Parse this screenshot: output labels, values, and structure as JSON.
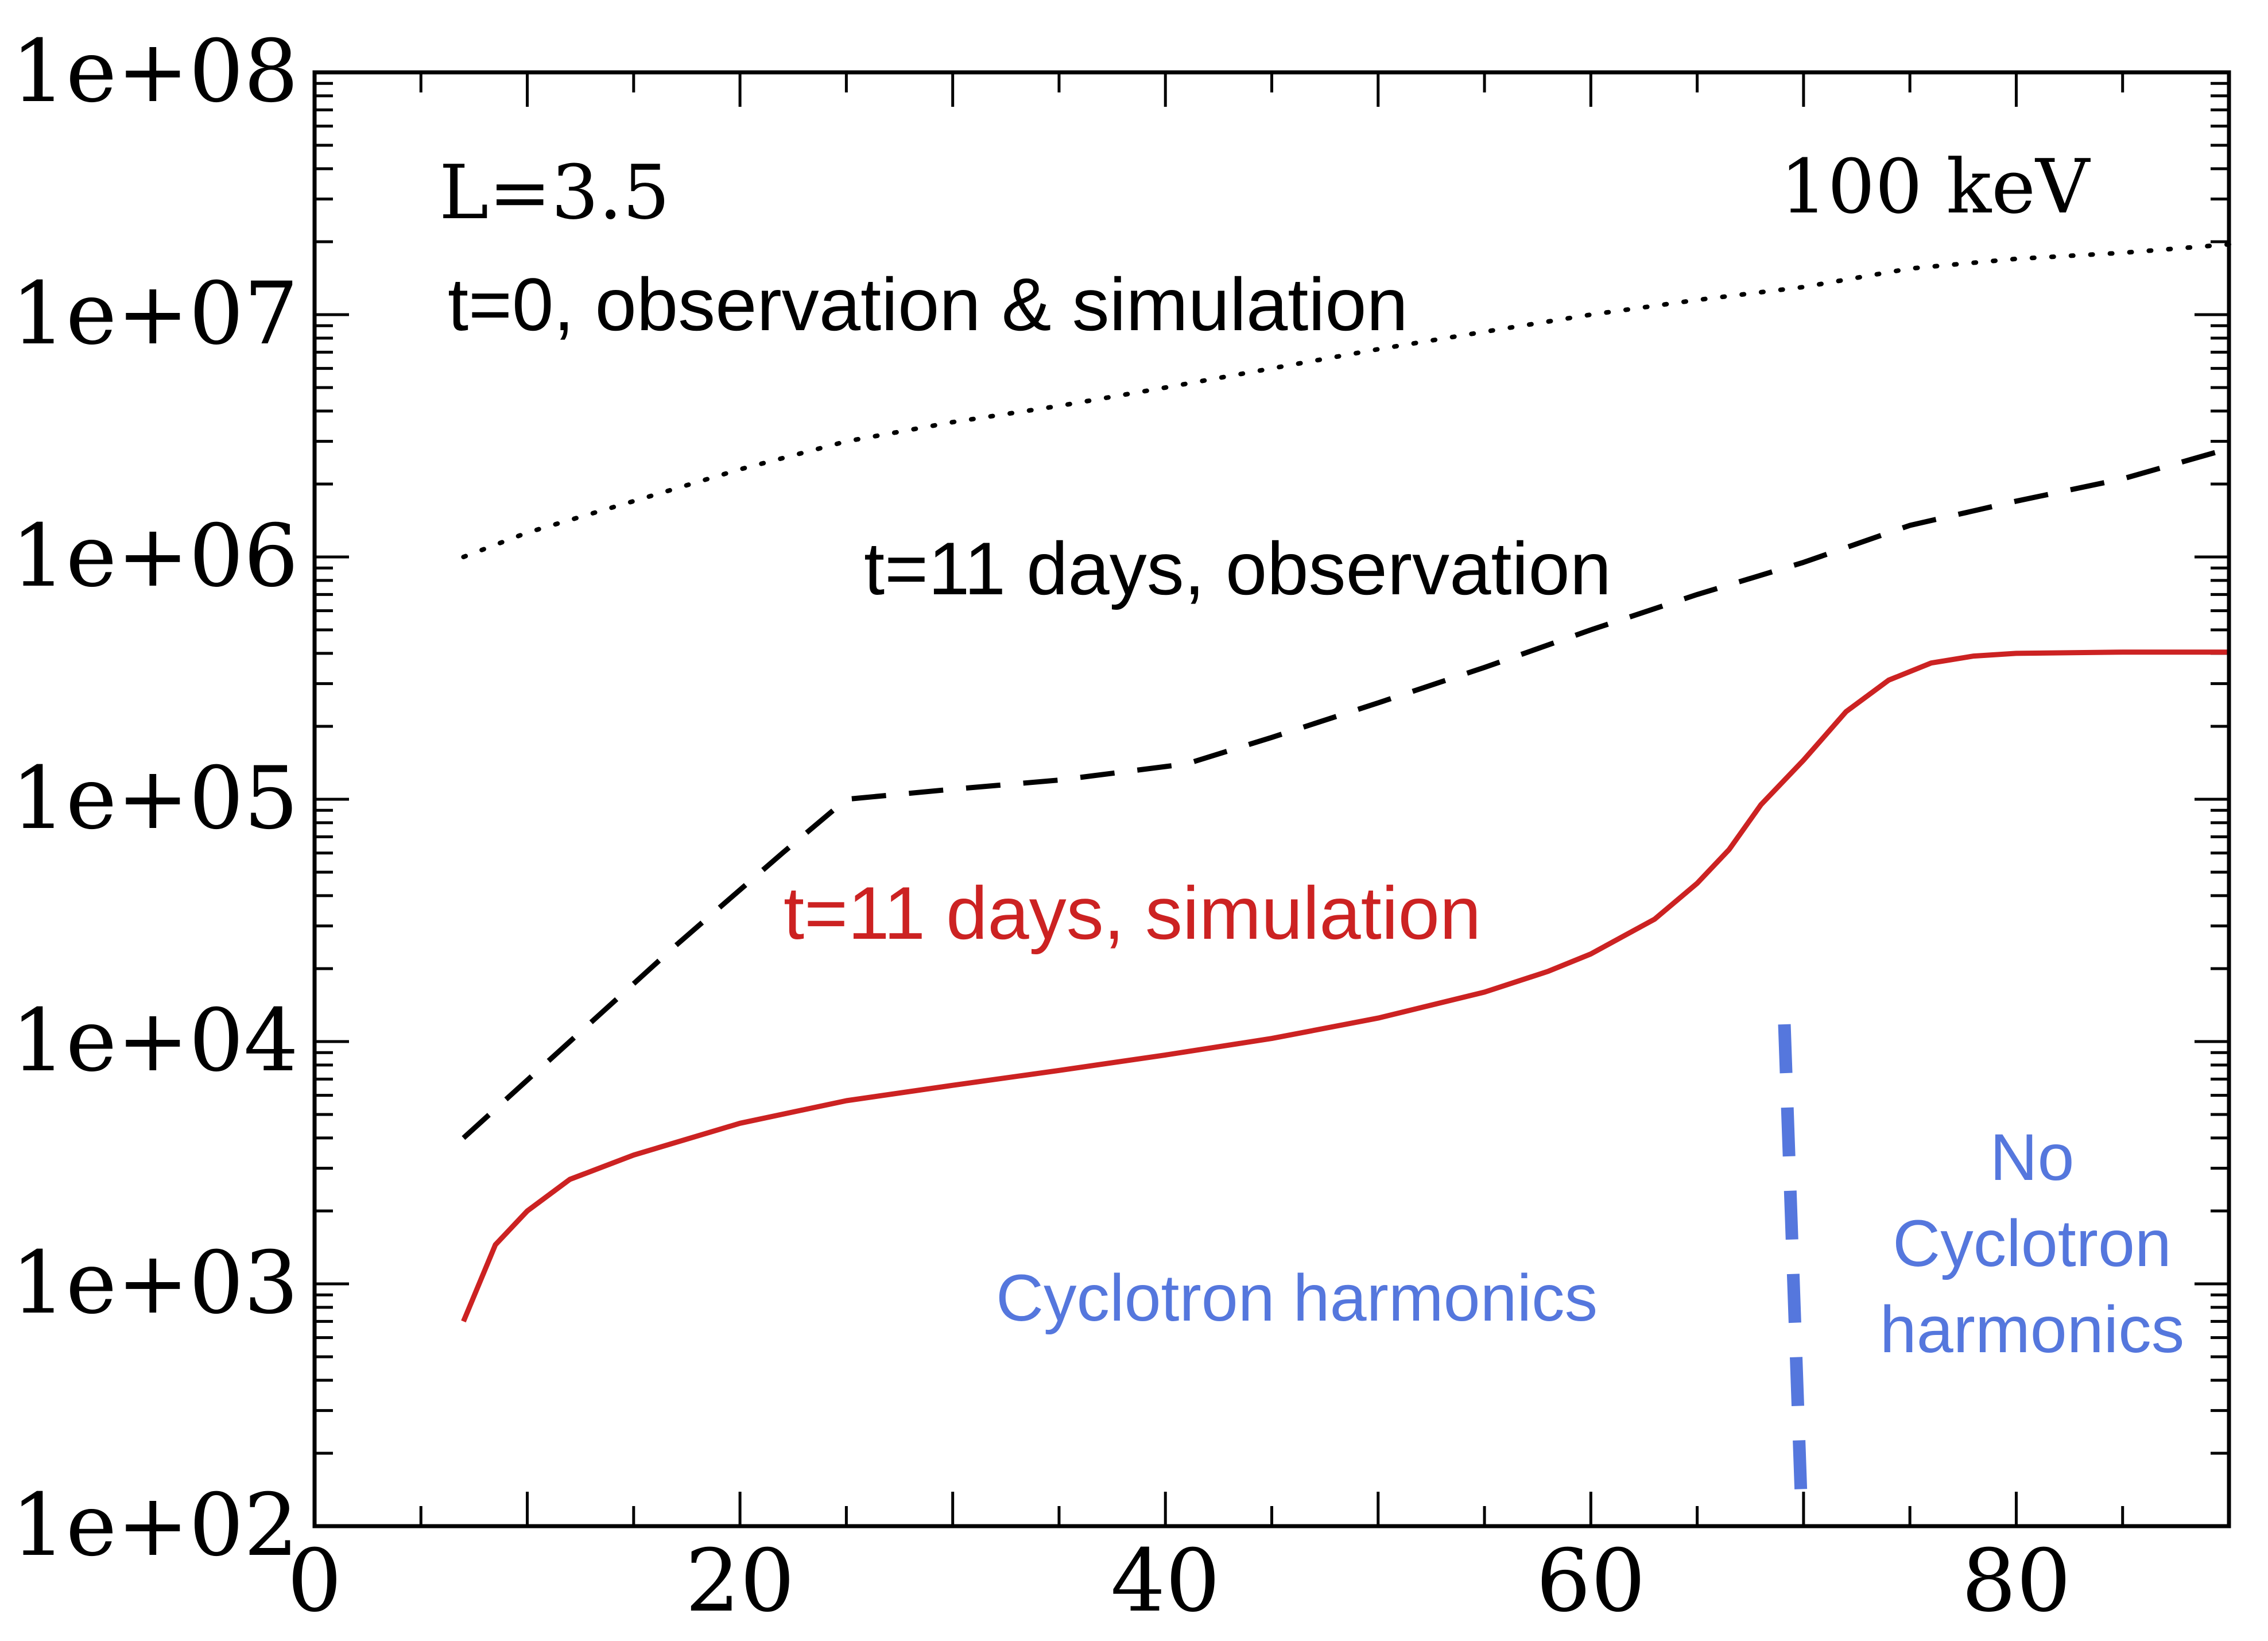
{
  "chart_data": {
    "type": "line",
    "title": "",
    "xlabel": "",
    "ylabel": "",
    "xlim": [
      0,
      90
    ],
    "ylim": [
      100,
      100000000
    ],
    "yscale": "log",
    "grid": false,
    "legend": "none",
    "x_ticks": [
      {
        "value": 0,
        "label": "0"
      },
      {
        "value": 20,
        "label": "20"
      },
      {
        "value": 40,
        "label": "40"
      },
      {
        "value": 60,
        "label": "60"
      },
      {
        "value": 80,
        "label": "80"
      }
    ],
    "y_ticks": [
      {
        "value": 100,
        "label": "1e+02"
      },
      {
        "value": 1000,
        "label": "1e+03"
      },
      {
        "value": 10000,
        "label": "1e+04"
      },
      {
        "value": 100000,
        "label": "1e+05"
      },
      {
        "value": 1000000,
        "label": "1e+06"
      },
      {
        "value": 10000000,
        "label": "1e+07"
      },
      {
        "value": 100000000,
        "label": "1e+08"
      }
    ],
    "series": [
      {
        "key": "t0",
        "style": "dotted",
        "color": "#000000",
        "points": [
          [
            7,
            1000000
          ],
          [
            10,
            1260000
          ],
          [
            15,
            1700000
          ],
          [
            20,
            2300000
          ],
          [
            25,
            3000000
          ],
          [
            30,
            3600000
          ],
          [
            35,
            4200000
          ],
          [
            40,
            5000000
          ],
          [
            45,
            6000000
          ],
          [
            50,
            7200000
          ],
          [
            55,
            8500000
          ],
          [
            60,
            10000000
          ],
          [
            65,
            11500000
          ],
          [
            70,
            13000000
          ],
          [
            75,
            15500000
          ],
          [
            80,
            17000000
          ],
          [
            85,
            18000000
          ],
          [
            90,
            19500000
          ]
        ]
      },
      {
        "key": "obs",
        "style": "dashed",
        "color": "#000000",
        "points": [
          [
            7,
            4000
          ],
          [
            12,
            10000
          ],
          [
            17,
            25000
          ],
          [
            22,
            60000
          ],
          [
            25,
            100000
          ],
          [
            30,
            110000
          ],
          [
            35,
            120000
          ],
          [
            41,
            140000
          ],
          [
            45,
            180000
          ],
          [
            50,
            250000
          ],
          [
            55,
            350000
          ],
          [
            60,
            500000
          ],
          [
            65,
            700000
          ],
          [
            70,
            950000
          ],
          [
            75,
            1350000
          ],
          [
            80,
            1700000
          ],
          [
            85,
            2100000
          ],
          [
            90,
            2800000
          ]
        ]
      },
      {
        "key": "sim",
        "style": "solid",
        "color": "#cc2222",
        "points": [
          [
            7,
            700
          ],
          [
            8.5,
            1450
          ],
          [
            10,
            2000
          ],
          [
            12,
            2700
          ],
          [
            15,
            3400
          ],
          [
            20,
            4600
          ],
          [
            25,
            5700
          ],
          [
            30,
            6600
          ],
          [
            35,
            7600
          ],
          [
            40,
            8800
          ],
          [
            45,
            10300
          ],
          [
            50,
            12500
          ],
          [
            55,
            16000
          ],
          [
            58,
            19500
          ],
          [
            60,
            23000
          ],
          [
            63,
            32000
          ],
          [
            65,
            45000
          ],
          [
            66.5,
            62000
          ],
          [
            68,
            95000
          ],
          [
            70,
            145000
          ],
          [
            72,
            230000
          ],
          [
            74,
            310000
          ],
          [
            76,
            365000
          ],
          [
            78,
            390000
          ],
          [
            80,
            400000
          ],
          [
            85,
            405000
          ],
          [
            90,
            405000
          ]
        ]
      }
    ],
    "vline": {
      "x": 69.5,
      "from": 150,
      "to": 10000,
      "style": "dashed",
      "color": "#5577dd"
    },
    "annotations": {
      "l_value": "L=3.5",
      "energy": "100 keV",
      "t0_label": "t=0, observation & simulation",
      "obs_label": "t=11 days, observation",
      "sim_label": "t=11 days, simulation",
      "cyclotron": "Cyclotron harmonics",
      "no_cyclotron": [
        "No",
        "Cyclotron",
        "harmonics"
      ]
    },
    "colors": {
      "simulation": "#cc2222",
      "annotation_blue": "#5577dd",
      "axes": "#000000"
    }
  }
}
